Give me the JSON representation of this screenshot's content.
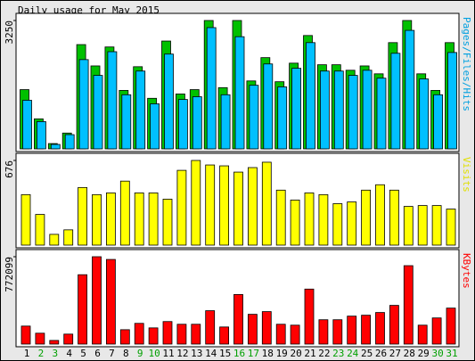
{
  "chart_data": [
    {
      "type": "bar",
      "title": "Daily usage for May 2015",
      "y_label": "Pages/Files/Hits",
      "ylim": [
        0,
        3250
      ],
      "yticks": [
        3250
      ],
      "series": [
        {
          "color": "#00c000",
          "values": [
            1500,
            760,
            134,
            400,
            2640,
            2100,
            2580,
            1480,
            2080,
            1280,
            2730,
            1390,
            1500,
            3250,
            1550,
            3250,
            1720,
            2310,
            1700,
            2170,
            2870,
            2130,
            2130,
            1990,
            2100,
            1900,
            2690,
            3250,
            1900,
            1480,
            2690
          ]
        },
        {
          "color": "#00c0ff",
          "values": [
            1230,
            690,
            112,
            360,
            2260,
            1860,
            2460,
            1370,
            1970,
            1140,
            2400,
            1250,
            1320,
            3070,
            1370,
            2840,
            1610,
            2150,
            1570,
            2040,
            2690,
            1970,
            1970,
            1860,
            1990,
            1790,
            2420,
            3000,
            1770,
            1370,
            2440
          ]
        }
      ]
    },
    {
      "type": "bar",
      "y_label": "Visits",
      "label_color": "#e0e000",
      "ylim": [
        0,
        676
      ],
      "yticks": [
        676
      ],
      "series": [
        {
          "color": "#ffff00",
          "values": [
            403,
            245,
            86,
            122,
            460,
            403,
            417,
            511,
            417,
            417,
            367,
            597,
            676,
            640,
            633,
            583,
            619,
            662,
            439,
            360,
            417,
            403,
            331,
            345,
            439,
            482,
            439,
            309,
            316,
            316,
            288
          ]
        }
      ]
    },
    {
      "type": "bar",
      "y_label": "KBytes",
      "label_color": "#ff0000",
      "ylim": [
        0,
        772099
      ],
      "yticks": [
        772099
      ],
      "series": [
        {
          "color": "#ff0000",
          "values": [
            159000,
            96000,
            32000,
            88000,
            613000,
            772099,
            748000,
            127000,
            183000,
            143000,
            199000,
            175000,
            175000,
            295000,
            151000,
            438000,
            263000,
            287000,
            175000,
            167000,
            486000,
            215000,
            215000,
            247000,
            255000,
            279000,
            342000,
            693000,
            167000,
            231000,
            318000
          ]
        }
      ],
      "categories": [
        "1",
        "2",
        "3",
        "4",
        "5",
        "6",
        "7",
        "8",
        "9",
        "10",
        "11",
        "12",
        "13",
        "14",
        "15",
        "16",
        "17",
        "18",
        "19",
        "20",
        "21",
        "22",
        "23",
        "24",
        "25",
        "26",
        "27",
        "28",
        "29",
        "30",
        "31"
      ],
      "category_colors": [
        "#000000",
        "#00a000",
        "#00a000",
        "#000000",
        "#000000",
        "#000000",
        "#000000",
        "#000000",
        "#00a000",
        "#00a000",
        "#000000",
        "#000000",
        "#000000",
        "#000000",
        "#000000",
        "#00a000",
        "#00a000",
        "#000000",
        "#000000",
        "#000000",
        "#000000",
        "#000000",
        "#00a000",
        "#00a000",
        "#000000",
        "#000000",
        "#000000",
        "#000000",
        "#000000",
        "#00a000",
        "#00a000"
      ]
    }
  ]
}
